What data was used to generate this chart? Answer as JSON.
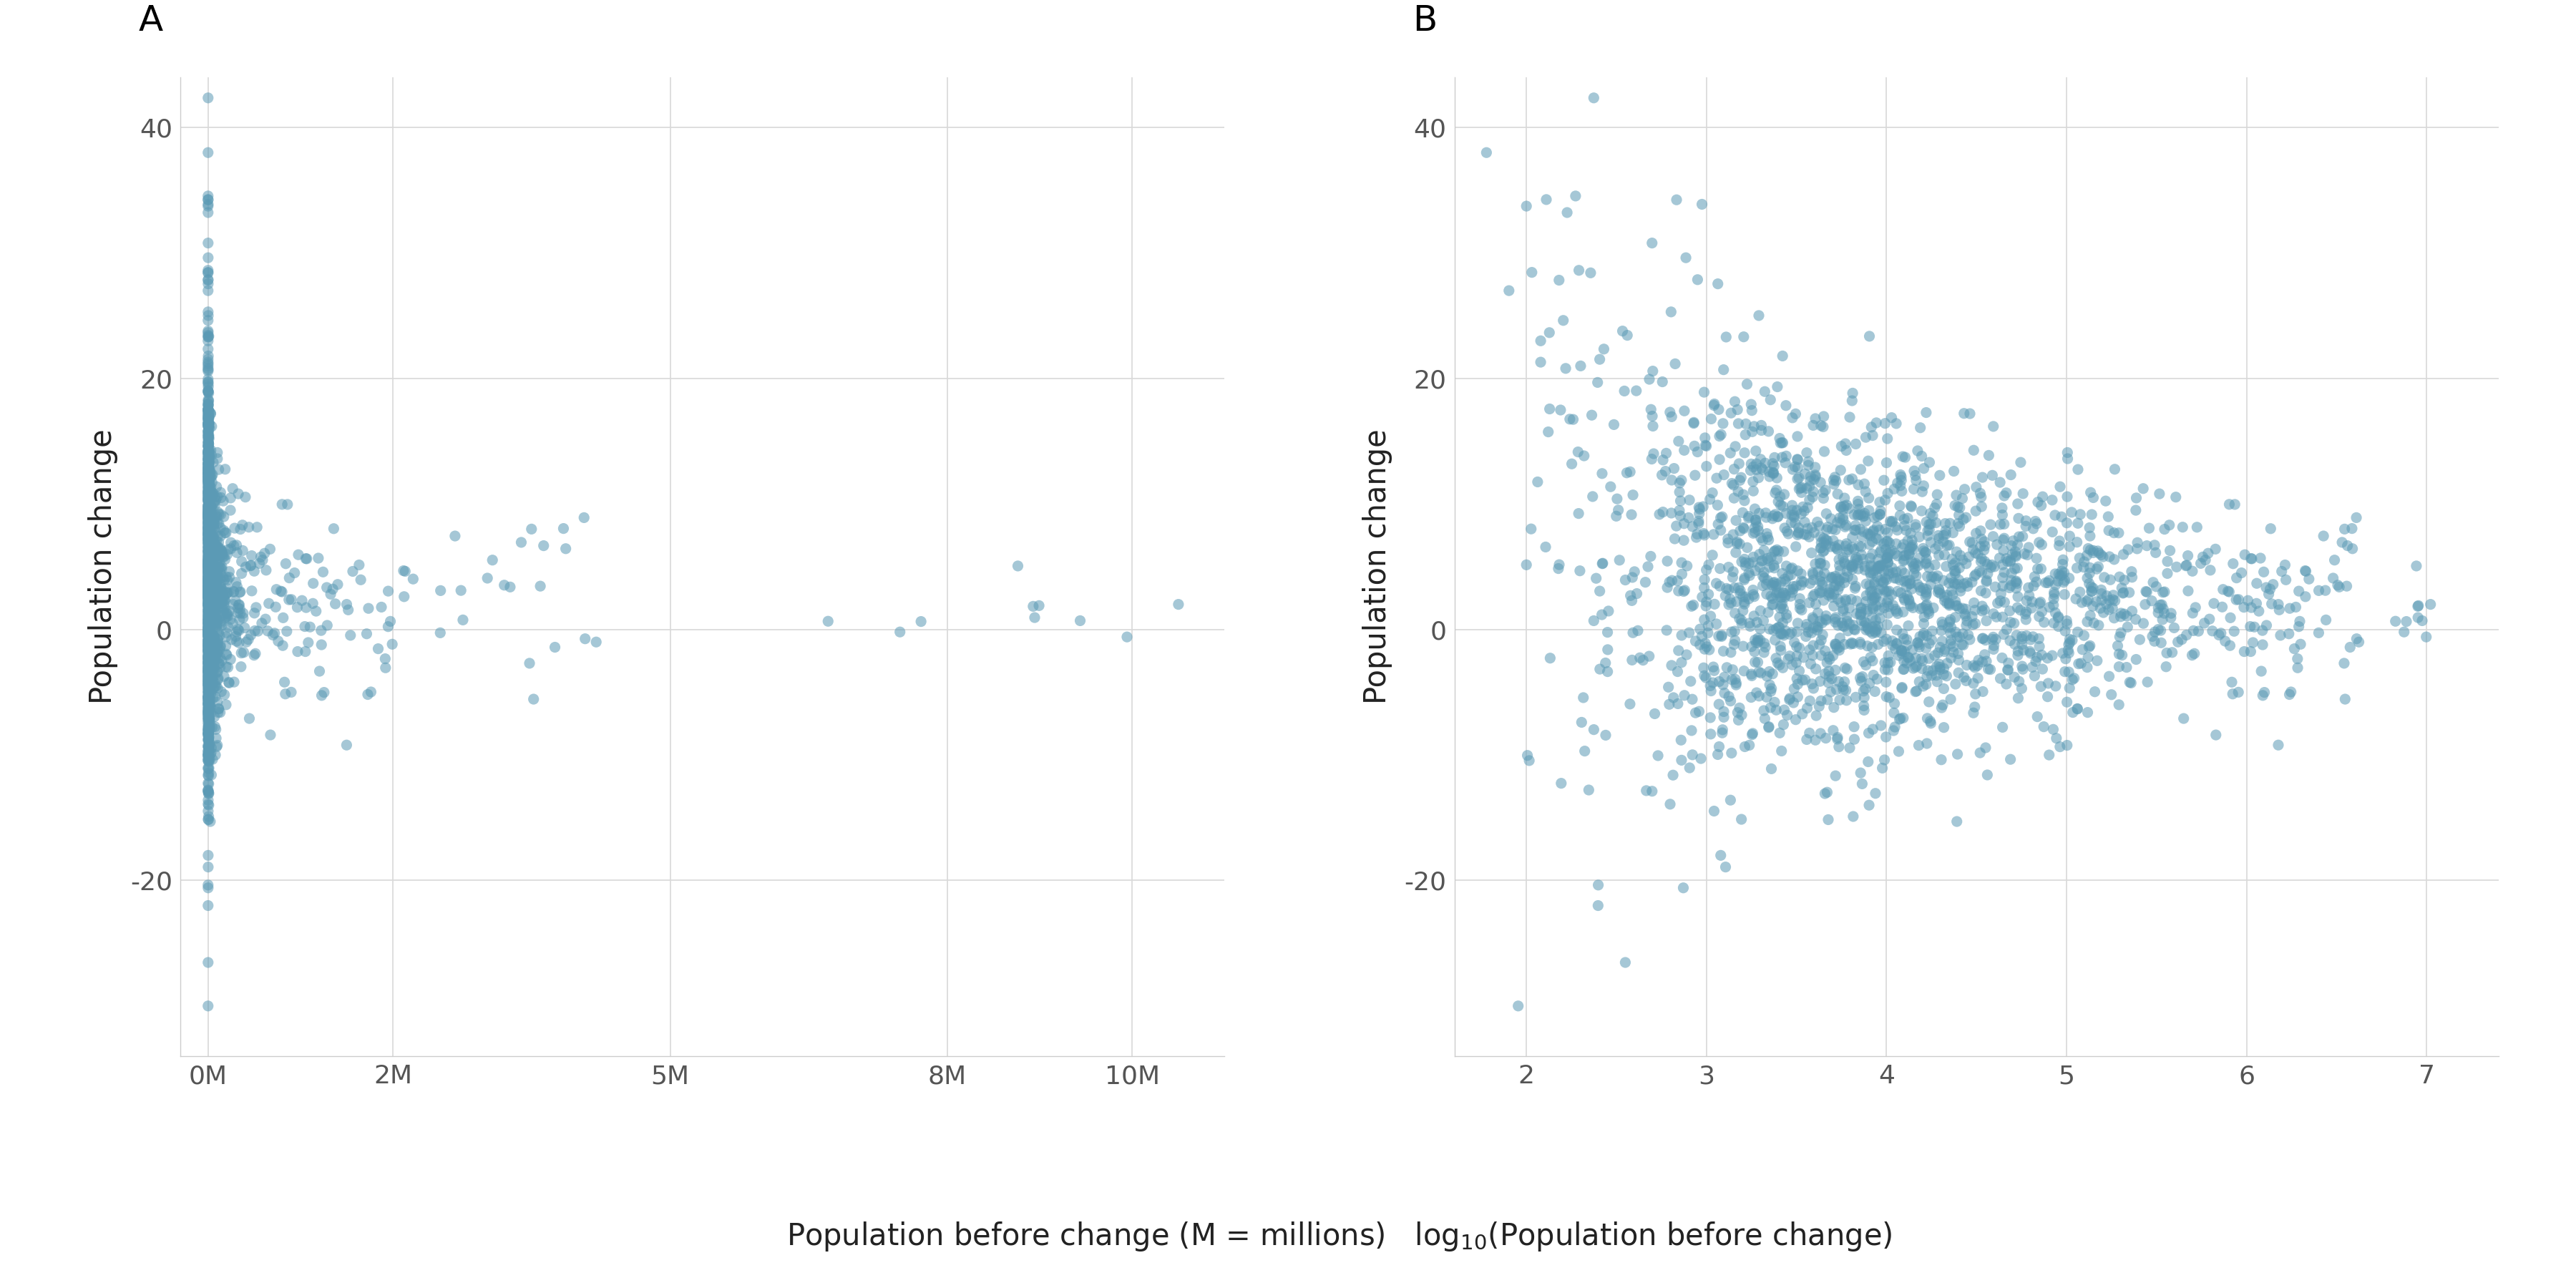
{
  "point_color": "#5b9ab5",
  "point_alpha": 0.55,
  "point_size": 120,
  "panel_A_label": "A",
  "panel_B_label": "B",
  "ylabel": "Population change",
  "xlabel_text": "Population before change (M = millions)",
  "xlabel_B_text": "log$_{10}$(Population before change)",
  "ylim": [
    -34,
    44
  ],
  "yticks": [
    -20,
    0,
    20,
    40
  ],
  "xlim_A": [
    -300000,
    11000000
  ],
  "xticks_A": [
    0,
    2000000,
    5000000,
    8000000,
    10000000
  ],
  "xticklabels_A": [
    "0M",
    "2M",
    "5M",
    "8M",
    "10M"
  ],
  "xlim_B": [
    1.6,
    7.4
  ],
  "xticks_B": [
    2,
    3,
    4,
    5,
    6,
    7
  ],
  "grid_color": "#d8d8d8",
  "tick_color": "#555555",
  "label_color": "#222222",
  "spine_color": "#cccccc",
  "background_color": "#ffffff",
  "seed": 99,
  "n_points": 2000
}
